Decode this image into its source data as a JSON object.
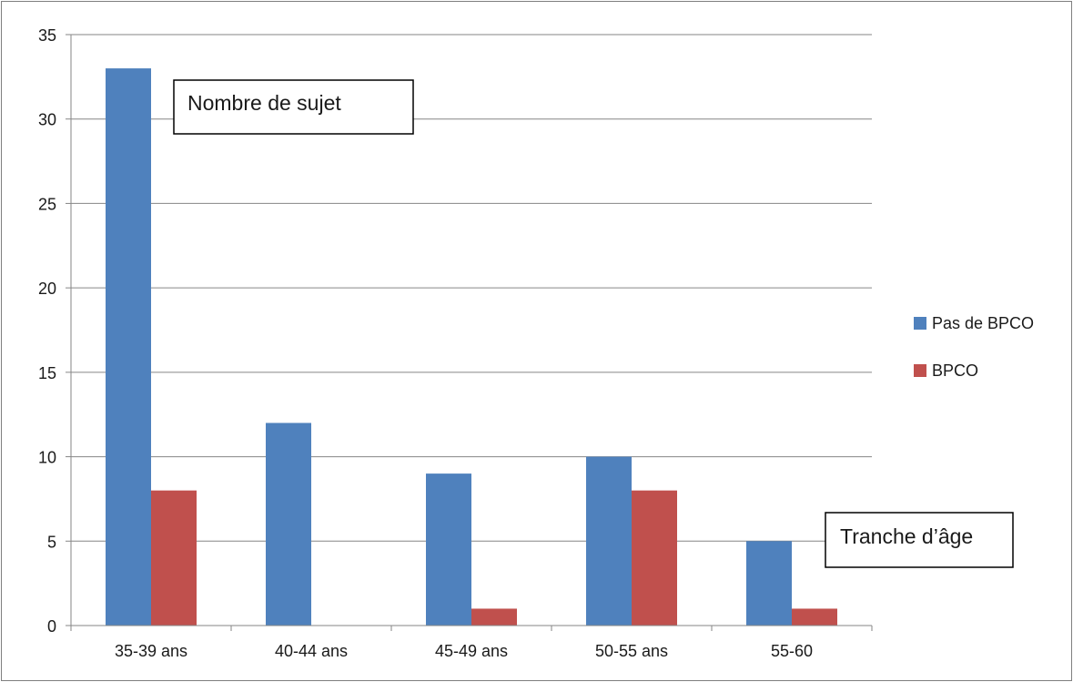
{
  "chart_data": {
    "type": "bar",
    "categories": [
      "35-39 ans",
      "40-44 ans",
      "45-49 ans",
      "50-55 ans",
      "55-60"
    ],
    "series": [
      {
        "name": "Pas de BPCO",
        "values": [
          33,
          12,
          9,
          10,
          5
        ],
        "color": "#4f81bd"
      },
      {
        "name": "BPCO",
        "values": [
          8,
          0,
          1,
          8,
          1
        ],
        "color": "#c0504d"
      }
    ],
    "title": "",
    "xlabel": "",
    "ylabel": "",
    "ylim": [
      0,
      35
    ],
    "yticks": [
      0,
      5,
      10,
      15,
      20,
      25,
      30,
      35
    ],
    "grid": true,
    "legend": "right",
    "annotations": {
      "y_axis_note": "Nombre de sujet",
      "x_axis_note": "Tranche d’âge"
    }
  }
}
